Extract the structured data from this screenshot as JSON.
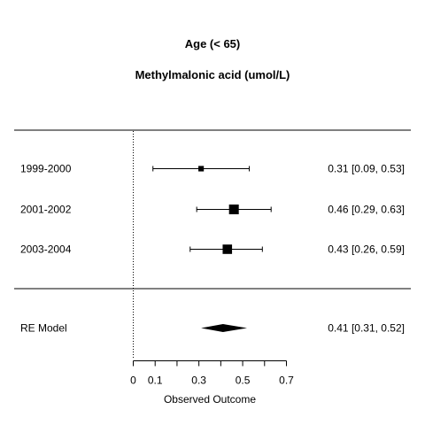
{
  "chart_data": {
    "type": "forest",
    "title": "Age (< 65)",
    "subtitle": "Methylmalonic acid (umol/L)",
    "xlabel": "Observed Outcome",
    "xlim": [
      0,
      0.7
    ],
    "xticks": [
      0,
      0.1,
      0.2,
      0.3,
      0.4,
      0.5,
      0.6,
      0.7
    ],
    "xtick_labels": [
      "0",
      "0.1",
      "",
      "0.3",
      "",
      "0.5",
      "",
      "0.7"
    ],
    "reference_line": 0,
    "studies": [
      {
        "label": "1999-2000",
        "estimate": 0.31,
        "lower": 0.09,
        "upper": 0.53,
        "text": "0.31 [0.09, 0.53]",
        "weight": 0.1
      },
      {
        "label": "2001-2002",
        "estimate": 0.46,
        "lower": 0.29,
        "upper": 0.63,
        "text": "0.46 [0.29, 0.63]",
        "weight": 0.47
      },
      {
        "label": "2003-2004",
        "estimate": 0.43,
        "lower": 0.26,
        "upper": 0.59,
        "text": "0.43 [0.26, 0.59]",
        "weight": 0.43
      }
    ],
    "summary": {
      "label": "RE Model",
      "estimate": 0.41,
      "lower": 0.31,
      "upper": 0.52,
      "text": "0.41 [0.31, 0.52]"
    }
  }
}
